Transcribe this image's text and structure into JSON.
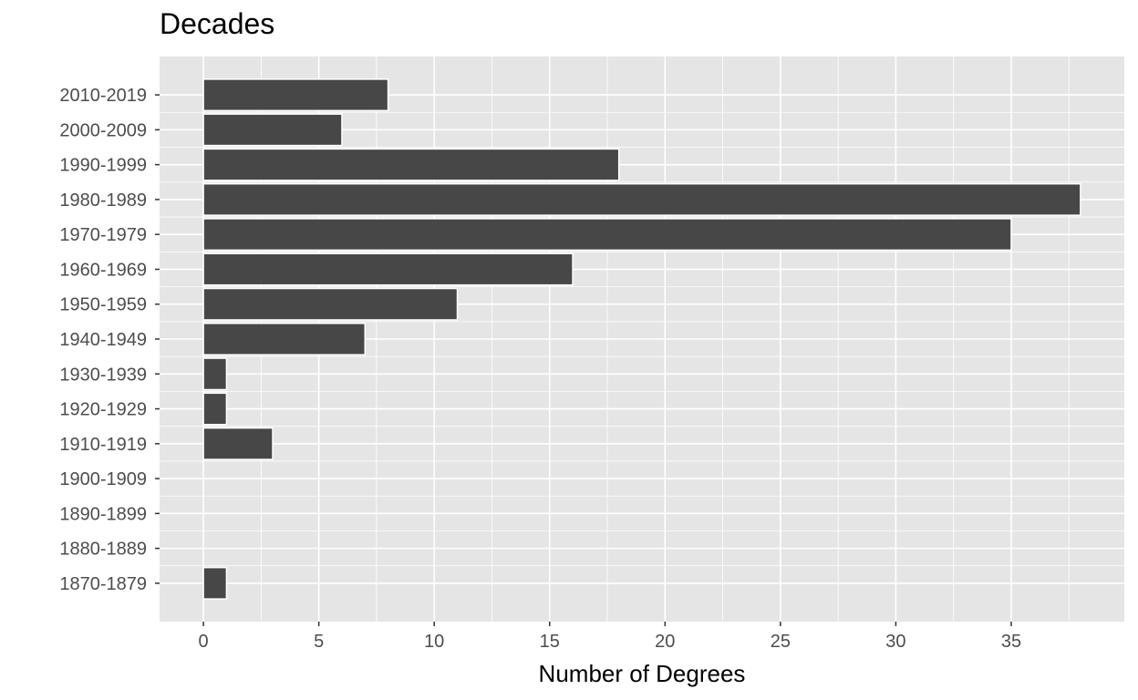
{
  "chart_data": {
    "type": "bar",
    "orientation": "horizontal",
    "title": "Decades",
    "xlabel": "Number of Degrees",
    "ylabel": "",
    "categories": [
      "1870-1879",
      "1880-1889",
      "1890-1899",
      "1900-1909",
      "1910-1919",
      "1920-1929",
      "1930-1939",
      "1940-1949",
      "1950-1959",
      "1960-1969",
      "1970-1979",
      "1980-1989",
      "1990-1999",
      "2000-2009",
      "2010-2019"
    ],
    "values": [
      1,
      0,
      0,
      0,
      3,
      1,
      1,
      7,
      11,
      16,
      35,
      38,
      18,
      6,
      8
    ],
    "xlim": [
      -1.9,
      39.9
    ],
    "xticks": [
      0,
      5,
      10,
      15,
      20,
      25,
      30,
      35
    ],
    "grid": true,
    "colors": {
      "panel": "#e5e5e5",
      "grid": "#ffffff",
      "bar": "#474747",
      "bar_outline": "#ffffff",
      "tick_text": "#4d4d4d",
      "tick_mark": "#333333"
    }
  }
}
